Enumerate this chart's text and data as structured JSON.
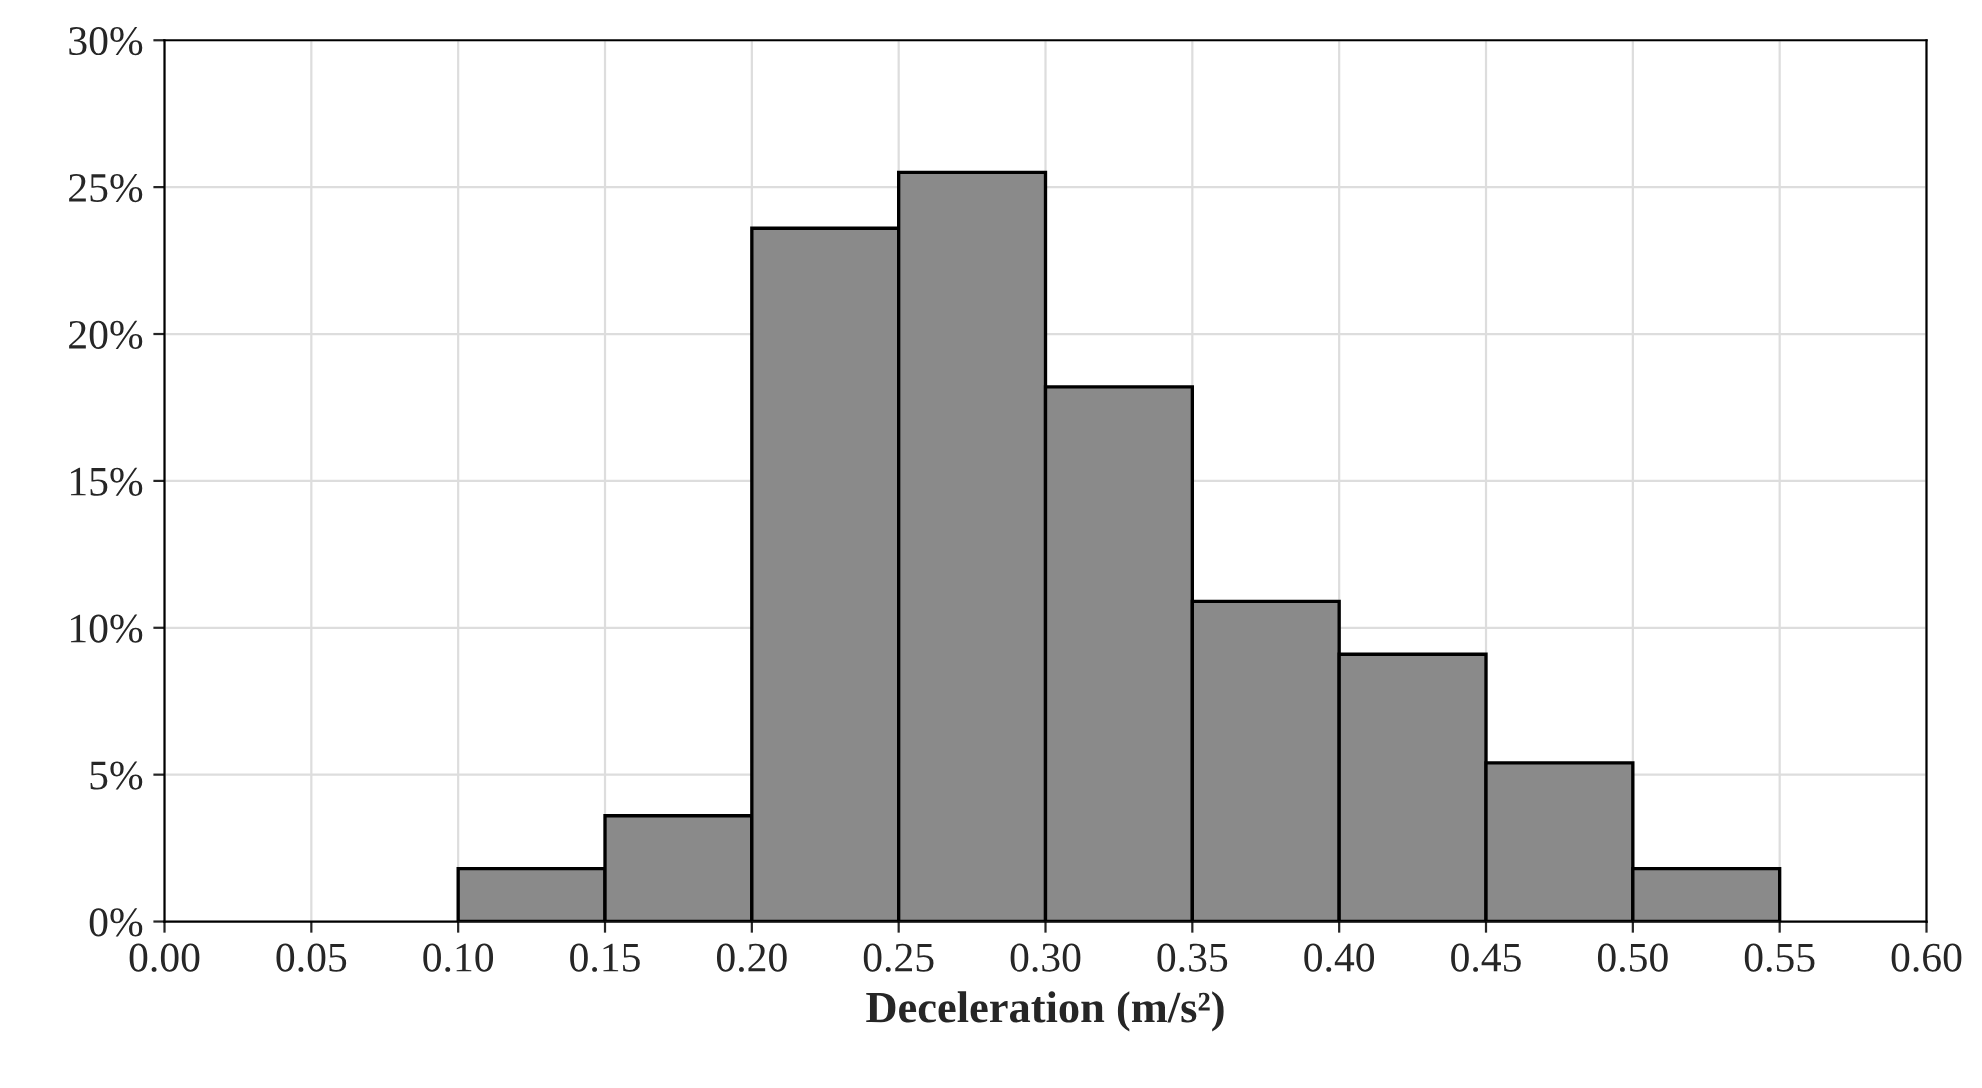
{
  "chart_data": {
    "type": "histogram",
    "xlabel": "Deceleration (m/s²)",
    "bins": [
      0.0,
      0.05,
      0.1,
      0.15,
      0.2,
      0.25,
      0.3,
      0.35,
      0.4,
      0.45,
      0.5,
      0.55,
      0.6
    ],
    "values": [
      0,
      0,
      1.8,
      3.6,
      23.6,
      25.5,
      18.2,
      10.9,
      9.1,
      5.4,
      1.8,
      0
    ],
    "color": "#8a8a8a",
    "xlim": [
      0,
      0.6
    ],
    "xticks": [
      {
        "value": 0,
        "label": "0.00"
      },
      {
        "value": 0.05,
        "label": "0.05"
      },
      {
        "value": 0.1,
        "label": "0.10"
      },
      {
        "value": 0.15,
        "label": "0.15"
      },
      {
        "value": 0.2,
        "label": "0.20"
      },
      {
        "value": 0.25,
        "label": "0.25"
      },
      {
        "value": 0.3,
        "label": "0.30"
      },
      {
        "value": 0.35,
        "label": "0.35"
      },
      {
        "value": 0.4,
        "label": "0.40"
      },
      {
        "value": 0.45,
        "label": "0.45"
      },
      {
        "value": 0.5,
        "label": "0.50"
      },
      {
        "value": 0.55,
        "label": "0.55"
      },
      {
        "value": 0.6,
        "label": "0.60"
      }
    ],
    "ylim": [
      0,
      30
    ],
    "yticks": [
      {
        "value": 0,
        "label": "0%"
      },
      {
        "value": 5,
        "label": "5%"
      },
      {
        "value": 10,
        "label": "10%"
      },
      {
        "value": 15,
        "label": "15%"
      },
      {
        "value": 20,
        "label": "20%"
      },
      {
        "value": 25,
        "label": "25%"
      },
      {
        "value": 30,
        "label": "30%"
      }
    ],
    "grid": true
  }
}
